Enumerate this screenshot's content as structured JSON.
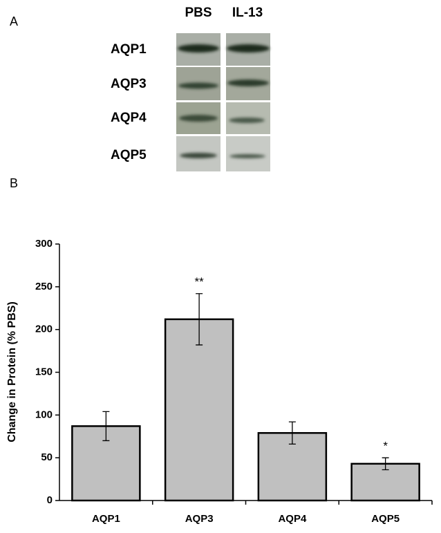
{
  "panel_a": {
    "label": "A",
    "columns": [
      "PBS",
      "IL-13"
    ],
    "rows": [
      "AQP1",
      "AQP3",
      "AQP4",
      "AQP5"
    ]
  },
  "panel_b": {
    "label": "B"
  },
  "chart_data": {
    "type": "bar",
    "ylabel": "Change in Protein (% PBS)",
    "categories": [
      "AQP1",
      "AQP3",
      "AQP4",
      "AQP5"
    ],
    "values": [
      87,
      212,
      79,
      43
    ],
    "errors": [
      17,
      30,
      13,
      7
    ],
    "annotations": [
      null,
      "**",
      null,
      "*"
    ],
    "color": "#c0c0c0",
    "ylim": [
      0,
      300
    ],
    "yticks": [
      0,
      50,
      100,
      150,
      200,
      250,
      300
    ]
  }
}
